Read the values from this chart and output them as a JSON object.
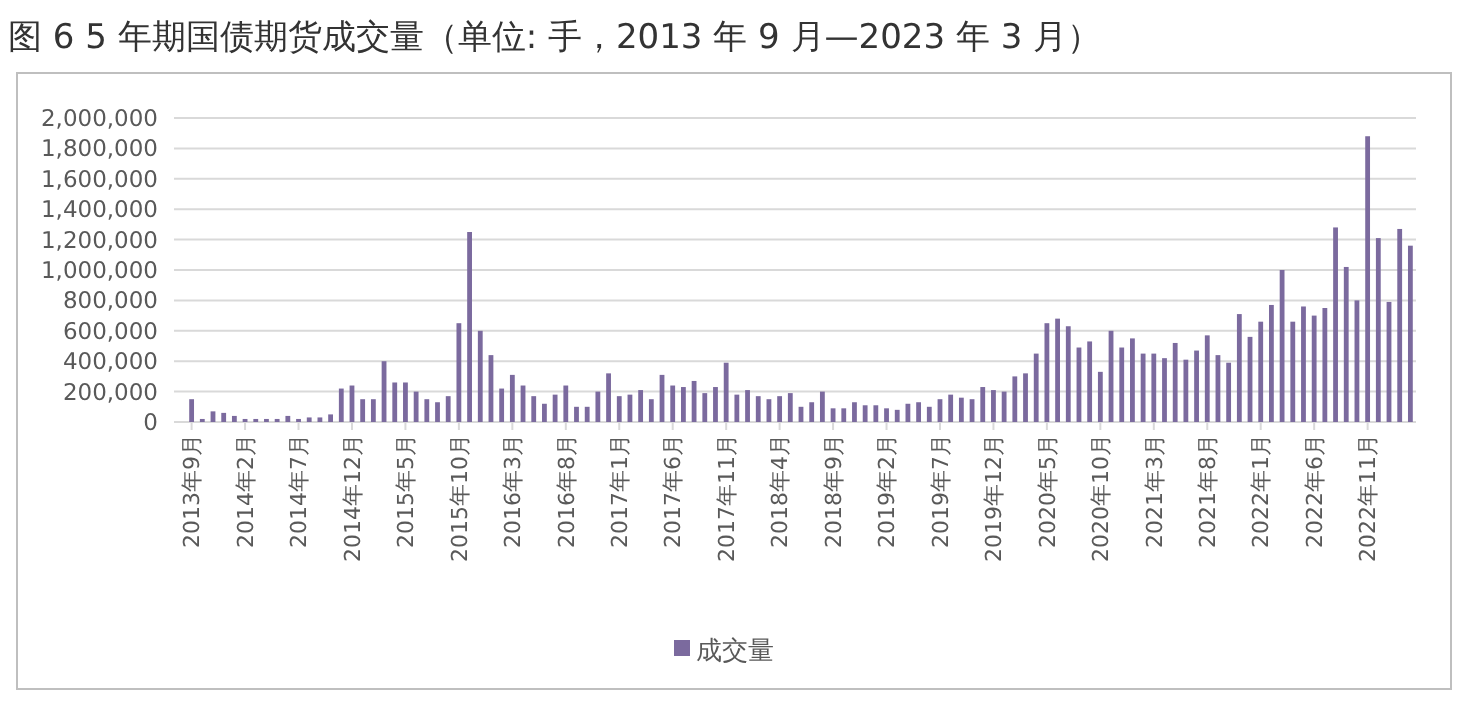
{
  "chart_data": {
    "type": "bar",
    "title": "图 6 5 年期国债期货成交量（单位: 手，2013 年 9 月—2023 年 3 月）",
    "categories": [
      "2013年9月",
      null,
      null,
      null,
      null,
      "2014年2月",
      null,
      null,
      null,
      null,
      "2014年7月",
      null,
      null,
      null,
      null,
      "2014年12月",
      null,
      null,
      null,
      null,
      "2015年5月",
      null,
      null,
      null,
      null,
      "2015年10月",
      null,
      null,
      null,
      null,
      "2016年3月",
      null,
      null,
      null,
      null,
      "2016年8月",
      null,
      null,
      null,
      null,
      "2017年1月",
      null,
      null,
      null,
      null,
      "2017年6月",
      null,
      null,
      null,
      null,
      "2017年11月",
      null,
      null,
      null,
      null,
      "2018年4月",
      null,
      null,
      null,
      null,
      "2018年9月",
      null,
      null,
      null,
      null,
      "2019年2月",
      null,
      null,
      null,
      null,
      "2019年7月",
      null,
      null,
      null,
      null,
      "2019年12月",
      null,
      null,
      null,
      null,
      "2020年5月",
      null,
      null,
      null,
      null,
      "2020年10月",
      null,
      null,
      null,
      null,
      "2021年3月",
      null,
      null,
      null,
      null,
      "2021年8月",
      null,
      null,
      null,
      null,
      "2022年1月",
      null,
      null,
      null,
      null,
      "2022年6月",
      null,
      null,
      null,
      null,
      "2022年11月",
      null,
      null,
      null,
      null
    ],
    "series": [
      {
        "name": "成交量",
        "color": "#7b6a9e",
        "values": [
          150000,
          20000,
          70000,
          60000,
          40000,
          20000,
          20000,
          20000,
          20000,
          40000,
          20000,
          30000,
          30000,
          50000,
          220000,
          240000,
          150000,
          150000,
          400000,
          260000,
          260000,
          200000,
          150000,
          130000,
          170000,
          650000,
          1250000,
          600000,
          440000,
          220000,
          310000,
          240000,
          170000,
          120000,
          180000,
          240000,
          100000,
          100000,
          200000,
          320000,
          170000,
          180000,
          210000,
          150000,
          310000,
          240000,
          230000,
          270000,
          190000,
          230000,
          390000,
          180000,
          210000,
          170000,
          150000,
          170000,
          190000,
          100000,
          130000,
          200000,
          90000,
          90000,
          130000,
          110000,
          110000,
          90000,
          80000,
          120000,
          130000,
          100000,
          150000,
          180000,
          160000,
          150000,
          230000,
          210000,
          200000,
          300000,
          320000,
          450000,
          650000,
          680000,
          630000,
          490000,
          530000,
          330000,
          600000,
          490000,
          550000,
          450000,
          450000,
          420000,
          520000,
          410000,
          470000,
          570000,
          440000,
          390000,
          710000,
          560000,
          660000,
          770000,
          1000000,
          660000,
          760000,
          700000,
          750000,
          1280000,
          1020000,
          800000,
          1880000,
          1210000,
          790000,
          1270000,
          1160000
        ]
      }
    ],
    "ylim": [
      0,
      2000000
    ],
    "yticks": [
      0,
      {
        "value": 200000,
        "label": "200,000"
      },
      {
        "value": 400000,
        "label": "400,000"
      },
      {
        "value": 600000,
        "label": "600,000"
      },
      {
        "value": 800000,
        "label": "800,000"
      },
      {
        "value": 1000000,
        "label": "1,000,000"
      },
      {
        "value": 1200000,
        "label": "1,200,000"
      },
      {
        "value": 1400000,
        "label": "1,400,000"
      },
      {
        "value": 1600000,
        "label": "1,600,000"
      },
      {
        "value": 1800000,
        "label": "1,800,000"
      },
      {
        "value": 2000000,
        "label": "2,000,000"
      }
    ],
    "grid": "y",
    "legend": "bottom"
  }
}
